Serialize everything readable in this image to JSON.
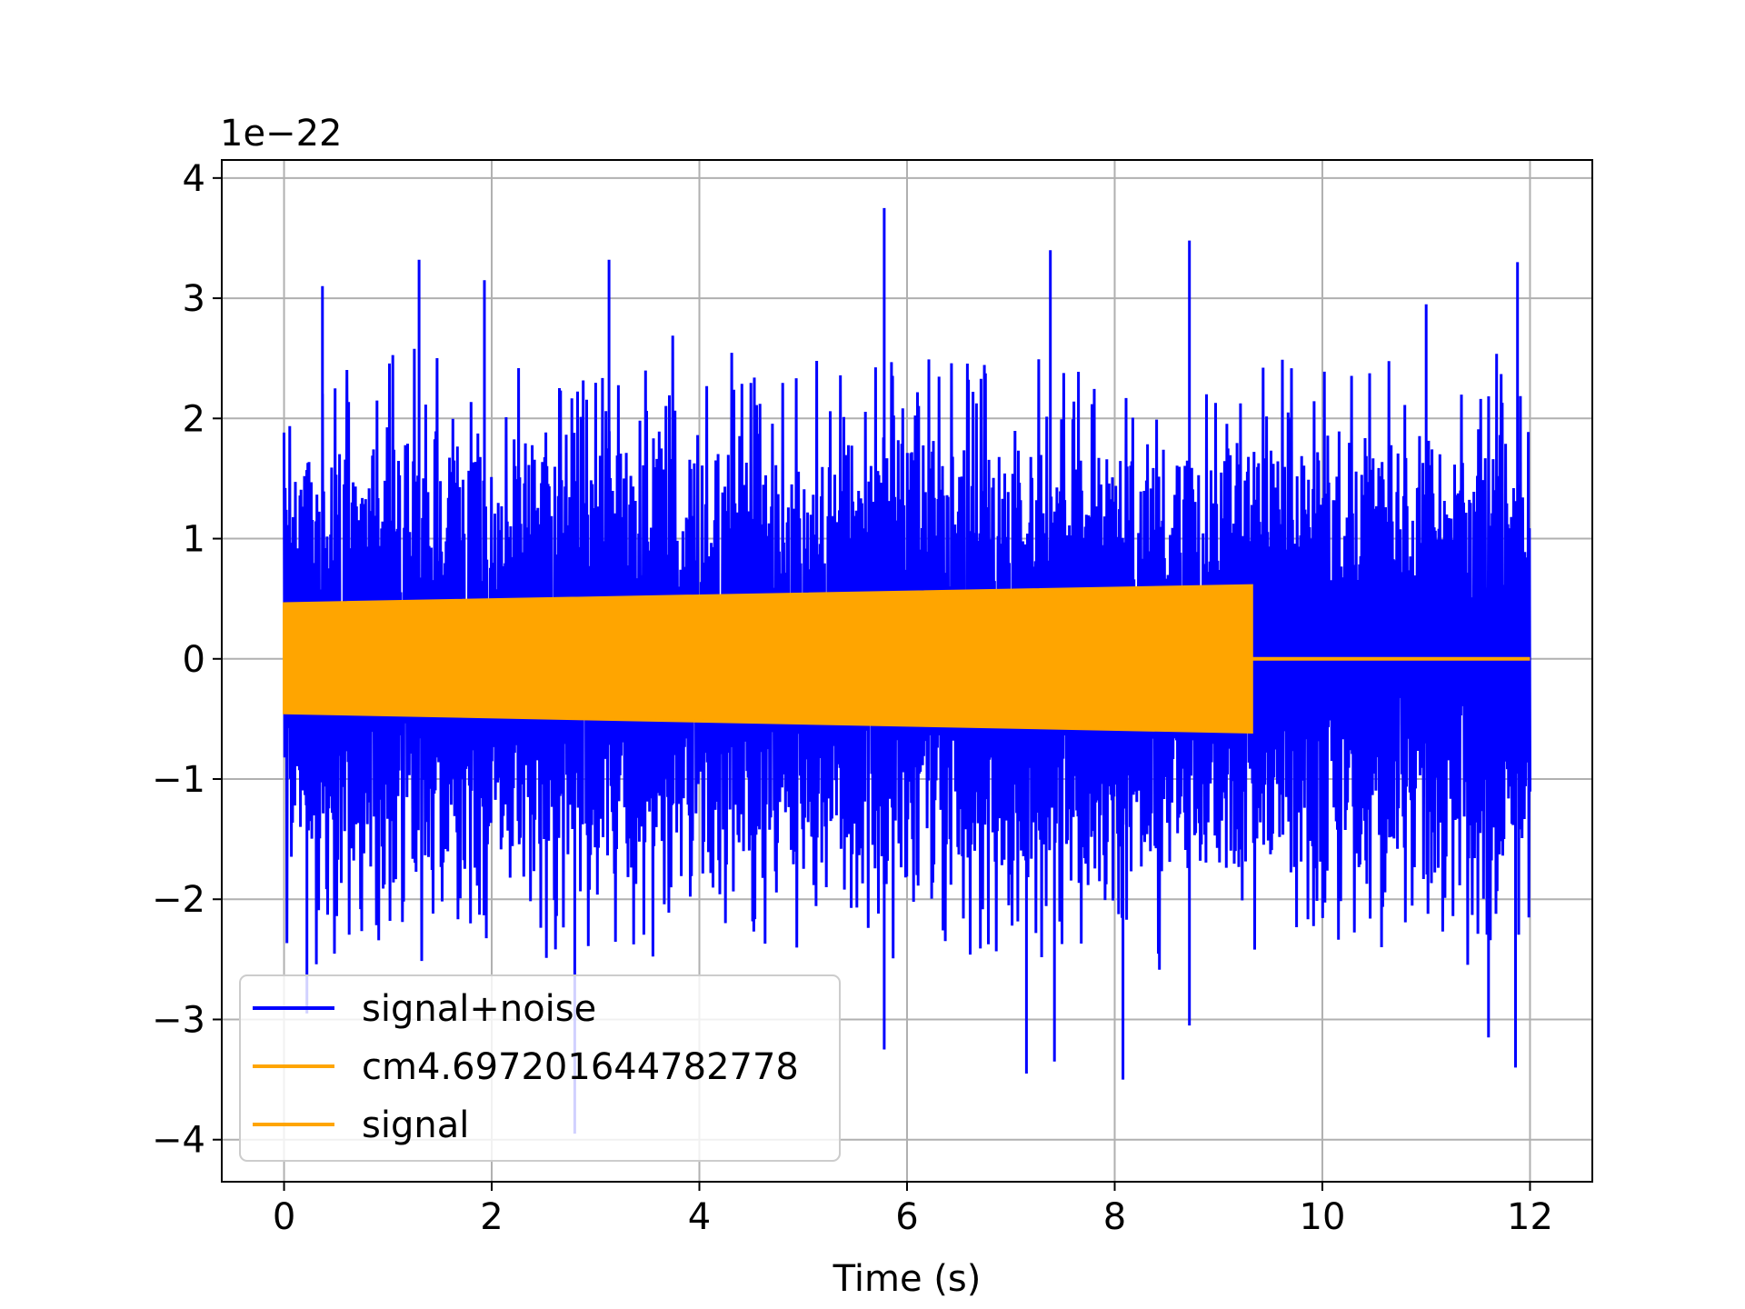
{
  "chart_data": {
    "type": "line",
    "title": "",
    "xlabel": "Time (s)",
    "ylabel": "",
    "y_offset_text": "1e−22",
    "y_scale_exponent": -22,
    "xlim": [
      -0.6,
      12.6
    ],
    "ylim": [
      -4.35,
      4.15
    ],
    "grid": true,
    "legend_position": "lower left",
    "x_ticks": [
      0,
      2,
      4,
      6,
      8,
      10,
      12
    ],
    "x_tick_labels": [
      "0",
      "2",
      "4",
      "6",
      "8",
      "10",
      "12"
    ],
    "y_ticks": [
      -4,
      -3,
      -2,
      -1,
      0,
      1,
      2,
      3,
      4
    ],
    "y_tick_labels": [
      "−4",
      "−3",
      "−2",
      "−1",
      "0",
      "1",
      "2",
      "3",
      "4"
    ],
    "series": [
      {
        "name": "signal+noise",
        "color": "#0000ff",
        "kind": "noisy band",
        "x_range": [
          0,
          12
        ],
        "typical_extent": [
          -1.8,
          2.1
        ],
        "max": 3.75,
        "min": -3.95,
        "spikes": [
          {
            "x": 0.37,
            "y": 3.1
          },
          {
            "x": 1.3,
            "y": 3.32
          },
          {
            "x": 1.93,
            "y": 3.15
          },
          {
            "x": 3.13,
            "y": 3.32
          },
          {
            "x": 5.78,
            "y": 3.75
          },
          {
            "x": 7.38,
            "y": 3.4
          },
          {
            "x": 8.72,
            "y": 3.48
          },
          {
            "x": 11.88,
            "y": 3.3
          },
          {
            "x": 11.0,
            "y": 2.95
          },
          {
            "x": 7.15,
            "y": -3.45
          },
          {
            "x": 7.42,
            "y": -3.35
          },
          {
            "x": 8.08,
            "y": -3.5
          },
          {
            "x": 11.86,
            "y": -3.4
          },
          {
            "x": 11.6,
            "y": -3.15
          },
          {
            "x": 5.78,
            "y": -3.25
          },
          {
            "x": 2.8,
            "y": -3.95
          },
          {
            "x": 8.72,
            "y": -3.05
          },
          {
            "x": 0.22,
            "y": -2.95
          }
        ]
      },
      {
        "name": "cm4.697201644782778",
        "color": "#ffa500",
        "kind": "chirp envelope",
        "x": [
          0,
          9.32,
          9.33,
          12.0
        ],
        "upper": [
          0.46,
          0.61,
          0,
          0
        ],
        "lower": [
          -0.45,
          -0.61,
          0,
          0
        ]
      },
      {
        "name": "signal",
        "color": "#ffa500",
        "kind": "chirp envelope",
        "x": [
          0,
          9.32,
          9.33,
          12.0
        ],
        "upper": [
          0.46,
          0.61,
          0,
          0
        ],
        "lower": [
          -0.45,
          -0.61,
          0,
          0
        ]
      }
    ]
  }
}
